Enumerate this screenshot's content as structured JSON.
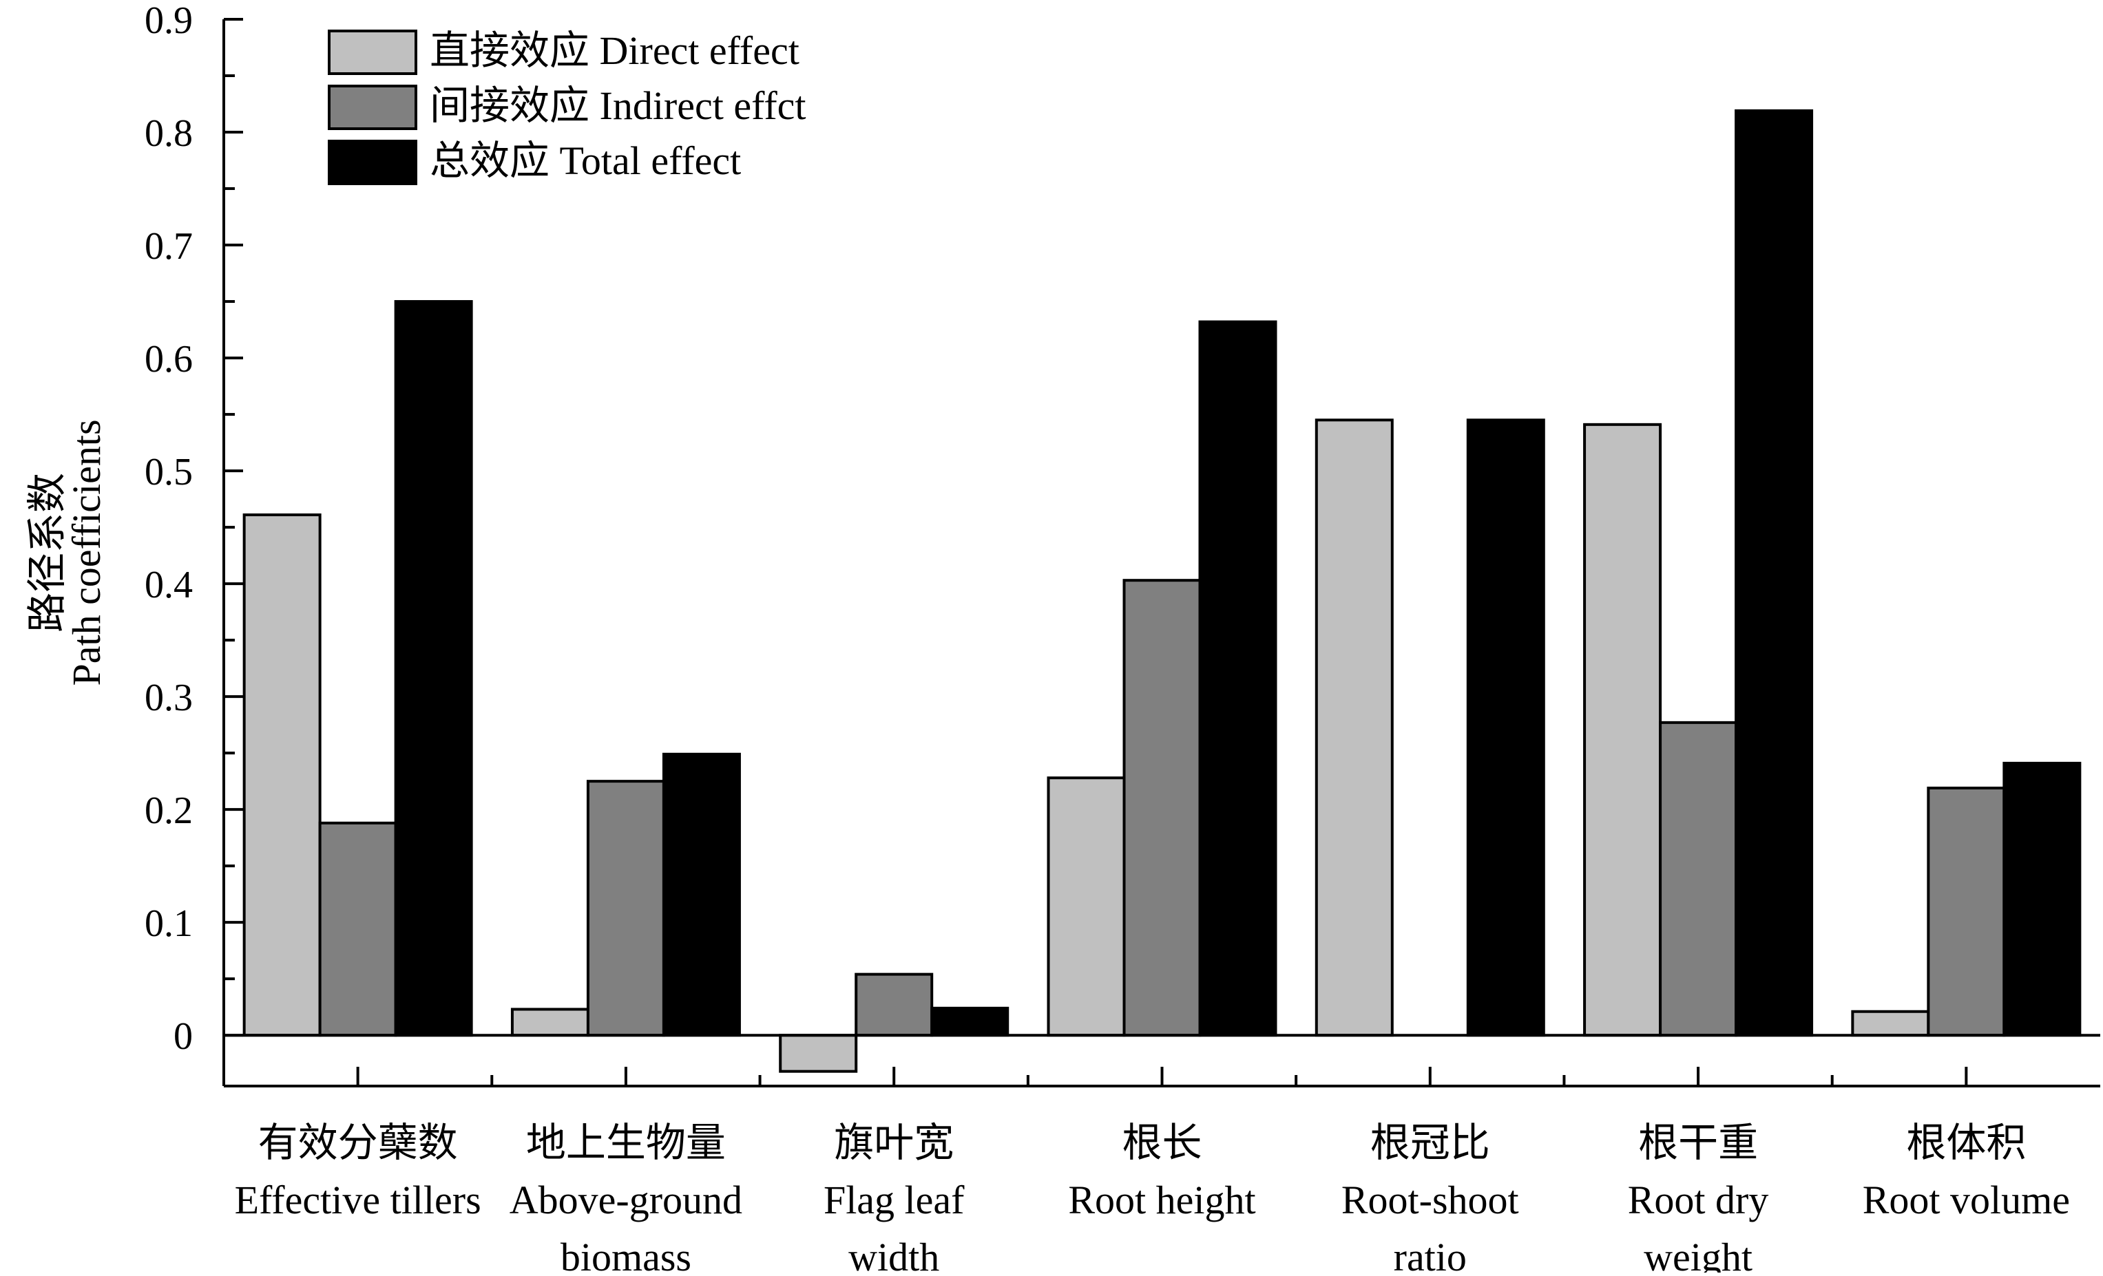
{
  "chart_data": {
    "type": "bar",
    "title": "",
    "xlabel": "",
    "ylabel": [
      "路径系数",
      "Path coefficients"
    ],
    "ylim": [
      -0.045,
      0.9
    ],
    "yticks": [
      0,
      0.1,
      0.2,
      0.3,
      0.4,
      0.5,
      0.6,
      0.7,
      0.8,
      0.9
    ],
    "ytick_labels": [
      "0",
      "0.1",
      "0.2",
      "0.3",
      "0.4",
      "0.5",
      "0.6",
      "0.7",
      "0.8",
      "0.9"
    ],
    "grid": false,
    "legend_position": "top-left",
    "categories": [
      [
        "有效分蘖数",
        "Effective tillers"
      ],
      [
        "地上生物量",
        "Above-ground",
        "biomass"
      ],
      [
        "旗叶宽",
        "Flag leaf",
        "width"
      ],
      [
        "根长",
        "Root height"
      ],
      [
        "根冠比",
        "Root-shoot",
        "ratio"
      ],
      [
        "根干重",
        "Root dry",
        "weight"
      ],
      [
        "根体积",
        "Root volume"
      ]
    ],
    "series": [
      {
        "name": "直接效应 Direct effect",
        "color": "#c0c0c0",
        "values": [
          0.461,
          0.023,
          -0.032,
          0.228,
          0.545,
          0.541,
          0.021
        ]
      },
      {
        "name": "间接效应 Indirect effct",
        "color": "#808080",
        "values": [
          0.188,
          0.225,
          0.054,
          0.403,
          0.0,
          0.277,
          0.219
        ]
      },
      {
        "name": "总效应 Total effect",
        "color": "#000000",
        "values": [
          0.65,
          0.249,
          0.024,
          0.632,
          0.545,
          0.819,
          0.241
        ]
      }
    ]
  }
}
